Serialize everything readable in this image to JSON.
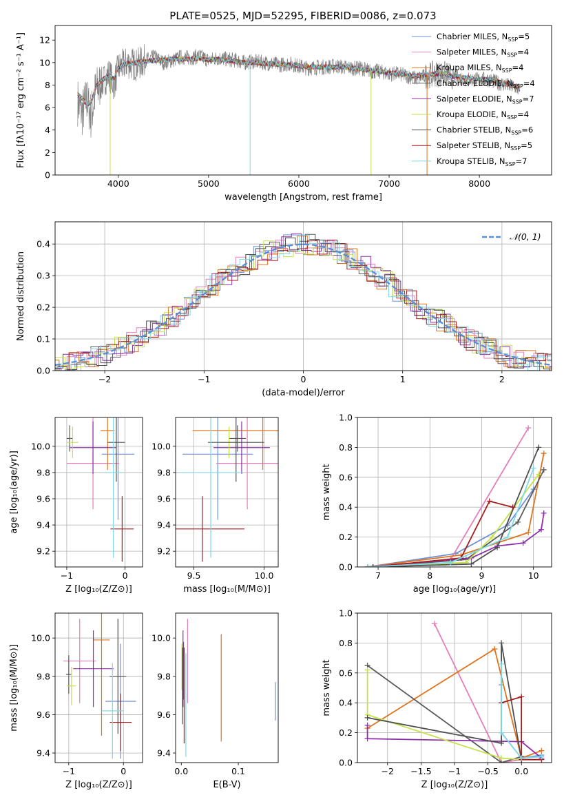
{
  "figure": {
    "title": "PLATE=0525, MJD=52295, FIBERID=0086, z=0.073"
  },
  "colors": {
    "Chabrier MILES": "#6f8fd6",
    "Salpeter MILES": "#e37fba",
    "Kroupa MILES": "#e0731c",
    "Chabrier ELODIE": "#5a5a5a",
    "Salpeter ELODIE": "#8e2fa8",
    "Kroupa ELODIE": "#c4e24a",
    "Chabrier STELIB": "#4e4e4e",
    "Salpeter STELIB": "#a61c1c",
    "Kroupa STELIB": "#7fd8e6",
    "data": "#808080",
    "gaussian": "#5a8fd6"
  },
  "chart_data": [
    {
      "id": "spectrum",
      "type": "line",
      "title": "PLATE=0525, MJD=52295, FIBERID=0086, z=0.073",
      "xlabel": "wavelength [Angstrom, rest frame]",
      "ylabel": "Flux [fλ10⁻¹⁷ erg cm⁻² s⁻¹ A⁻¹]",
      "xlim": [
        3300,
        8800
      ],
      "ylim": [
        0,
        13.3
      ],
      "xticks": [
        4000,
        5000,
        6000,
        7000,
        8000
      ],
      "yticks": [
        0,
        2,
        4,
        6,
        8,
        10,
        12
      ],
      "legend_position": "top-right",
      "legend": [
        {
          "label": "Chabrier MILES, N",
          "sub": "SSP",
          "suffix": "=5"
        },
        {
          "label": "Salpeter MILES, N",
          "sub": "SSP",
          "suffix": "=4"
        },
        {
          "label": "Kroupa MILES, N",
          "sub": "SSP",
          "suffix": "=4"
        },
        {
          "label": "Chabrier ELODIE, N",
          "sub": "SSP",
          "suffix": "=4"
        },
        {
          "label": "Salpeter ELODIE, N",
          "sub": "SSP",
          "suffix": "=7"
        },
        {
          "label": "Kroupa ELODIE, N",
          "sub": "SSP",
          "suffix": "=4"
        },
        {
          "label": "Chabrier STELIB, N",
          "sub": "SSP",
          "suffix": "=6"
        },
        {
          "label": "Salpeter STELIB, N",
          "sub": "SSP",
          "suffix": "=5"
        },
        {
          "label": "Kroupa STELIB, N",
          "sub": "SSP",
          "suffix": "=7"
        }
      ],
      "series": [
        {
          "name": "data",
          "x": [
            3550,
            3600,
            3650,
            3700,
            3750,
            3800,
            3850,
            3900,
            3950,
            4000,
            4100,
            4200,
            4300,
            4400,
            4500,
            4600,
            4700,
            4800,
            4900,
            5000,
            5100,
            5200,
            5300,
            5400,
            5500,
            5600,
            5700,
            5800,
            5900,
            6000,
            6100,
            6200,
            6300,
            6400,
            6500,
            6600,
            6700,
            6800,
            6900,
            7000,
            7100,
            7200,
            7300,
            7400,
            7500,
            7600,
            7700,
            7800,
            7900,
            8000,
            8100,
            8200,
            8300,
            8400,
            8450
          ],
          "y": [
            6.5,
            5.5,
            6.8,
            5.2,
            7.5,
            8.0,
            8.5,
            9.0,
            8.0,
            9.5,
            10.0,
            9.8,
            10.2,
            10.5,
            10.0,
            10.2,
            10.5,
            10.4,
            10.6,
            10.2,
            10.4,
            10.3,
            10.2,
            10.0,
            10.1,
            10.0,
            9.9,
            9.8,
            9.9,
            9.7,
            9.5,
            9.6,
            9.6,
            9.7,
            9.6,
            9.5,
            9.5,
            9.2,
            9.2,
            9.0,
            9.0,
            8.8,
            8.6,
            8.8,
            9.0,
            9.0,
            8.8,
            8.6,
            8.5,
            8.5,
            8.5,
            8.2,
            8.0,
            7.8,
            7.5
          ]
        },
        {
          "name": "model",
          "x": [
            3550,
            3600,
            3650,
            3700,
            3750,
            3800,
            3850,
            3900,
            3950,
            4000,
            4100,
            4200,
            4300,
            4400,
            4500,
            4600,
            4700,
            4800,
            4900,
            5000,
            5100,
            5200,
            5300,
            5400,
            5500,
            5600,
            5700,
            5800,
            5900,
            6000,
            6100,
            6200,
            6300,
            6400,
            6500,
            6600,
            6700,
            6800,
            6900,
            7000,
            7100,
            7200,
            7300,
            7400,
            7500,
            7600,
            7700,
            7800,
            7900,
            8000,
            8100,
            8200,
            8300,
            8400,
            8450
          ],
          "y": [
            7.2,
            6.8,
            6.3,
            6.5,
            7.8,
            8.3,
            8.6,
            8.8,
            8.5,
            9.6,
            9.9,
            10.0,
            10.1,
            10.2,
            10.2,
            10.3,
            10.3,
            10.3,
            10.4,
            10.2,
            10.3,
            10.2,
            10.1,
            10.0,
            10.0,
            9.9,
            9.9,
            9.8,
            9.8,
            9.7,
            9.6,
            9.6,
            9.6,
            9.6,
            9.6,
            9.5,
            9.4,
            9.3,
            9.2,
            9.1,
            9.0,
            8.9,
            8.8,
            8.9,
            9.0,
            9.0,
            8.8,
            8.7,
            8.6,
            8.5,
            8.5,
            8.3,
            8.1,
            7.9,
            7.6
          ]
        }
      ]
    },
    {
      "id": "residuals",
      "type": "line",
      "xlabel": "(data-model)/error",
      "ylabel": "Normed distribution",
      "xlim": [
        -2.5,
        2.5
      ],
      "ylim": [
        0,
        0.47
      ],
      "xticks": [
        -2,
        -1,
        0,
        1,
        2
      ],
      "yticks": [
        0.0,
        0.1,
        0.2,
        0.3,
        0.4
      ],
      "legend_position": "top-right",
      "legend": [
        {
          "label": "𝒩(0, 1)"
        }
      ],
      "gaussian": {
        "mean": 0,
        "sigma": 1,
        "color": "gaussian"
      }
    },
    {
      "id": "age-vs-z",
      "type": "scatter",
      "xlabel": "Z [log₁₀(Z/Z⊙)]",
      "ylabel": "age  [log₁₀(age/yr)]",
      "xlim": [
        -1.2,
        0.3
      ],
      "ylim": [
        9.08,
        10.22
      ],
      "xticks": [
        -1,
        0
      ],
      "yticks": [
        9.2,
        9.4,
        9.6,
        9.8,
        10.0
      ],
      "points": [
        {
          "s": "Chabrier MILES",
          "x": -0.12,
          "y": 9.94,
          "xe": 0.28,
          "ye": 0.5
        },
        {
          "s": "Salpeter MILES",
          "x": -0.55,
          "y": 9.87,
          "xe": 0.45,
          "ye": 0.35
        },
        {
          "s": "Kroupa MILES",
          "x": -0.3,
          "y": 10.12,
          "xe": 0.12,
          "ye": 0.3
        },
        {
          "s": "Chabrier ELODIE",
          "x": -0.95,
          "y": 10.06,
          "xe": 0.05,
          "ye": 0.1
        },
        {
          "s": "Salpeter ELODIE",
          "x": -0.55,
          "y": 9.99,
          "xe": 0.4,
          "ye": 0.2
        },
        {
          "s": "Kroupa ELODIE",
          "x": -0.9,
          "y": 10.03,
          "xe": 0.1,
          "ye": 0.12
        },
        {
          "s": "Chabrier STELIB",
          "x": -0.15,
          "y": 10.03,
          "xe": 0.15,
          "ye": 0.3
        },
        {
          "s": "Salpeter STELIB",
          "x": -0.05,
          "y": 9.37,
          "xe": 0.2,
          "ye": 0.25
        },
        {
          "s": "Kroupa STELIB",
          "x": -0.2,
          "y": 9.8,
          "xe": 0.15,
          "ye": 0.65
        }
      ]
    },
    {
      "id": "age-vs-mass",
      "type": "scatter",
      "xlabel": "mass [log₁₀(M/M⊙)]",
      "xlim": [
        9.37,
        10.1
      ],
      "ylim": [
        9.08,
        10.22
      ],
      "xticks": [
        9.5,
        10.0
      ],
      "yticks": [
        9.2,
        9.4,
        9.6,
        9.8,
        10.0
      ],
      "points": [
        {
          "s": "Chabrier MILES",
          "x": 9.67,
          "y": 9.94,
          "xe": 0.25,
          "ye": 0.5
        },
        {
          "s": "Salpeter MILES",
          "x": 9.88,
          "y": 9.87,
          "xe": 0.22,
          "ye": 0.35
        },
        {
          "s": "Kroupa MILES",
          "x": 9.99,
          "y": 10.12,
          "xe": 0.5,
          "ye": 0.3
        },
        {
          "s": "Chabrier ELODIE",
          "x": 9.81,
          "y": 10.06,
          "xe": 0.06,
          "ye": 0.1
        },
        {
          "s": "Salpeter ELODIE",
          "x": 9.84,
          "y": 9.99,
          "xe": 0.2,
          "ye": 0.2
        },
        {
          "s": "Kroupa ELODIE",
          "x": 9.75,
          "y": 10.03,
          "xe": 0.08,
          "ye": 0.12
        },
        {
          "s": "Chabrier STELIB",
          "x": 9.8,
          "y": 10.03,
          "xe": 0.2,
          "ye": 0.3
        },
        {
          "s": "Salpeter STELIB",
          "x": 9.56,
          "y": 9.37,
          "xe": 0.3,
          "ye": 0.25
        },
        {
          "s": "Kroupa STELIB",
          "x": 9.62,
          "y": 9.8,
          "xe": 0.22,
          "ye": 0.65
        }
      ]
    },
    {
      "id": "weight-vs-age",
      "type": "line",
      "xlabel": "age  [log₁₀(age/yr)]",
      "ylabel": "mass weight",
      "xlim": [
        6.6,
        10.35
      ],
      "ylim": [
        0,
        1.0
      ],
      "xticks": [
        7,
        8,
        9,
        10
      ],
      "yticks": [
        0.0,
        0.2,
        0.4,
        0.6,
        0.8,
        1.0
      ],
      "series": [
        {
          "name": "Chabrier MILES",
          "x": [
            6.8,
            8.5,
            9.5,
            10.0
          ],
          "y": [
            0.0,
            0.09,
            0.28,
            0.52
          ]
        },
        {
          "name": "Salpeter MILES",
          "x": [
            6.8,
            8.4,
            9.9
          ],
          "y": [
            0.0,
            0.05,
            0.93
          ]
        },
        {
          "name": "Kroupa MILES",
          "x": [
            6.8,
            8.6,
            9.9,
            10.2
          ],
          "y": [
            0.0,
            0.08,
            0.23,
            0.76
          ]
        },
        {
          "name": "Chabrier ELODIE",
          "x": [
            6.9,
            8.7,
            9.7,
            10.2
          ],
          "y": [
            0.0,
            0.05,
            0.3,
            0.65
          ]
        },
        {
          "name": "Salpeter ELODIE",
          "x": [
            6.8,
            8.8,
            9.3,
            9.8,
            10.15,
            10.2
          ],
          "y": [
            0.0,
            0.06,
            0.14,
            0.16,
            0.25,
            0.36
          ]
        },
        {
          "name": "Kroupa ELODIE",
          "x": [
            6.8,
            8.7,
            9.2,
            10.1
          ],
          "y": [
            0.0,
            0.03,
            0.2,
            0.62
          ]
        },
        {
          "name": "Chabrier STELIB",
          "x": [
            6.9,
            8.8,
            9.3,
            10.1
          ],
          "y": [
            0.0,
            0.02,
            0.13,
            0.8
          ]
        },
        {
          "name": "Salpeter STELIB",
          "x": [
            6.9,
            8.6,
            9.15,
            9.6
          ],
          "y": [
            0.0,
            0.06,
            0.44,
            0.4
          ]
        },
        {
          "name": "Kroupa STELIB",
          "x": [
            6.8,
            8.4,
            9.5,
            10.0
          ],
          "y": [
            0.0,
            0.03,
            0.2,
            0.66
          ]
        }
      ]
    },
    {
      "id": "mass-vs-z",
      "type": "scatter",
      "xlabel": "Z [log₁₀(Z/Z⊙)]",
      "ylabel": "mass [log₁₀(M/M⊙)]",
      "xlim": [
        -1.25,
        0.35
      ],
      "ylim": [
        9.35,
        10.13
      ],
      "xticks": [
        -1,
        0
      ],
      "yticks": [
        9.4,
        9.6,
        9.8,
        10.0
      ],
      "points": [
        {
          "s": "Chabrier MILES",
          "x": -0.05,
          "y": 9.67,
          "xe": 0.28,
          "ye": 0.3
        },
        {
          "s": "Salpeter MILES",
          "x": -0.8,
          "y": 9.88,
          "xe": 0.3,
          "ye": 0.22
        },
        {
          "s": "Kroupa MILES",
          "x": -0.4,
          "y": 9.99,
          "xe": 0.15,
          "ye": 0.5
        },
        {
          "s": "Chabrier ELODIE",
          "x": -1.0,
          "y": 9.81,
          "xe": 0.05,
          "ye": 0.1
        },
        {
          "s": "Salpeter ELODIE",
          "x": -0.55,
          "y": 9.84,
          "xe": 0.37,
          "ye": 0.2
        },
        {
          "s": "Kroupa ELODIE",
          "x": -0.95,
          "y": 9.75,
          "xe": 0.08,
          "ye": 0.1
        },
        {
          "s": "Chabrier STELIB",
          "x": -0.1,
          "y": 9.8,
          "xe": 0.15,
          "ye": 0.3
        },
        {
          "s": "Salpeter STELIB",
          "x": -0.05,
          "y": 9.56,
          "xe": 0.2,
          "ye": 0.15
        },
        {
          "s": "Kroupa STELIB",
          "x": -0.2,
          "y": 9.62,
          "xe": 0.2,
          "ye": 0.25
        }
      ]
    },
    {
      "id": "mass-vs-ebv",
      "type": "scatter",
      "xlabel": "E(B-V)",
      "xlim": [
        -0.01,
        0.17
      ],
      "ylim": [
        9.35,
        10.13
      ],
      "xticks": [
        0.0,
        0.1
      ],
      "yticks": [
        9.4,
        9.6,
        9.8,
        10.0
      ],
      "points": [
        {
          "s": "Chabrier MILES",
          "x": 0.165,
          "y": 9.67,
          "xe": 0,
          "ye": 0.1
        },
        {
          "s": "Salpeter MILES",
          "x": 0.011,
          "y": 9.88,
          "xe": 0,
          "ye": 0.22
        },
        {
          "s": "Kroupa MILES",
          "x": 0.07,
          "y": 9.74,
          "xe": 0,
          "ye": 0.28
        },
        {
          "s": "Chabrier ELODIE",
          "x": 0.004,
          "y": 9.83,
          "xe": 0,
          "ye": 0.15
        },
        {
          "s": "Salpeter ELODIE",
          "x": 0.003,
          "y": 9.84,
          "xe": 0,
          "ye": 0.2
        },
        {
          "s": "Kroupa ELODIE",
          "x": 0.001,
          "y": 9.85,
          "xe": 0,
          "ye": 0.12
        },
        {
          "s": "Chabrier STELIB",
          "x": 0.002,
          "y": 9.75,
          "xe": 0,
          "ye": 0.2
        },
        {
          "s": "Salpeter STELIB",
          "x": 0.005,
          "y": 9.7,
          "xe": 0,
          "ye": 0.25
        },
        {
          "s": "Kroupa STELIB",
          "x": 0.008,
          "y": 9.65,
          "xe": 0,
          "ye": 0.27
        }
      ]
    },
    {
      "id": "weight-vs-z",
      "type": "line",
      "xlabel": "Z [log₁₀(Z/Z⊙)]",
      "ylabel": "mass weight",
      "xlim": [
        -2.45,
        0.45
      ],
      "ylim": [
        0,
        1.0
      ],
      "xticks": [
        -2.0,
        -1.5,
        -1.0,
        -0.5,
        0.0
      ],
      "yticks": [
        0.0,
        0.2,
        0.4,
        0.6,
        0.8,
        1.0
      ],
      "series": [
        {
          "name": "Chabrier MILES",
          "x": [
            -0.3,
            -0.3,
            0.0,
            0.3
          ],
          "y": [
            0.52,
            0.2,
            0.03,
            0.05
          ]
        },
        {
          "name": "Salpeter MILES",
          "x": [
            -1.3,
            -0.3,
            0.0
          ],
          "y": [
            0.93,
            0.0,
            0.02
          ]
        },
        {
          "name": "Kroupa MILES",
          "x": [
            -2.3,
            -0.4,
            0.0,
            0.3
          ],
          "y": [
            0.23,
            0.76,
            0.03,
            0.08
          ]
        },
        {
          "name": "Chabrier ELODIE",
          "x": [
            -2.3,
            -0.3,
            0.0
          ],
          "y": [
            0.65,
            0.0,
            0.04
          ]
        },
        {
          "name": "Salpeter ELODIE",
          "x": [
            -2.3,
            -2.3,
            0.0,
            0.3
          ],
          "y": [
            0.25,
            0.16,
            0.14,
            0.03
          ]
        },
        {
          "name": "Kroupa ELODIE",
          "x": [
            -2.3,
            -2.3,
            -0.3,
            0.0
          ],
          "y": [
            0.62,
            0.32,
            0.03,
            0.02
          ]
        },
        {
          "name": "Chabrier STELIB",
          "x": [
            -2.3,
            -0.3,
            -0.3,
            0.0
          ],
          "y": [
            0.3,
            0.13,
            0.8,
            0.02
          ]
        },
        {
          "name": "Salpeter STELIB",
          "x": [
            -0.3,
            0.0,
            0.0,
            0.3
          ],
          "y": [
            0.4,
            0.44,
            0.02,
            0.02
          ]
        },
        {
          "name": "Kroupa STELIB",
          "x": [
            -0.3,
            -0.3,
            0.0,
            0.3
          ],
          "y": [
            0.66,
            0.2,
            0.03,
            0.04
          ]
        }
      ]
    }
  ]
}
